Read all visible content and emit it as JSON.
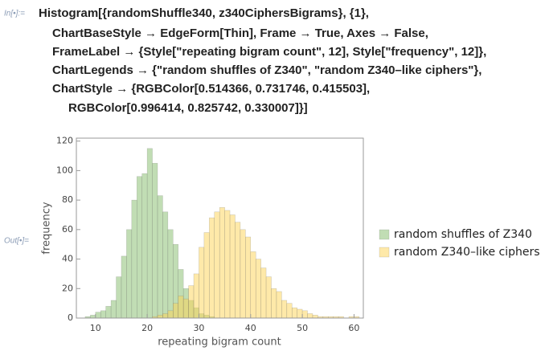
{
  "input_label": "In[•]:=",
  "output_label": "Out[•]=",
  "code_lines": [
    "Histogram[{randomShuffle340, z340CiphersBigrams}, {1},",
    "ChartBaseStyle → EdgeForm[Thin], Frame → True, Axes → False,",
    "FrameLabel → {Style[\"repeating bigram count\", 12], Style[\"frequency\", 12]},",
    "ChartLegends → {\"random shuffles of Z340\", \"random Z340–like ciphers\"},",
    "ChartStyle → {RGBColor[0.514366, 0.731746, 0.415503],",
    "RGBColor[0.996414, 0.825742, 0.330007]}]"
  ],
  "chart_data": {
    "type": "histogram",
    "x_label": "repeating bigram count",
    "y_label": "frequency",
    "xlim": [
      6.3,
      61.8
    ],
    "ylim": [
      0,
      122
    ],
    "xticks": [
      10,
      20,
      30,
      40,
      50,
      60
    ],
    "yticks": [
      0,
      20,
      40,
      60,
      80,
      100,
      120
    ],
    "opacity": 0.5,
    "legend": "right",
    "series": [
      {
        "name": "random shuffles of Z340",
        "color": "#83bb6a",
        "bins": [
          8,
          9,
          10,
          11,
          12,
          13,
          14,
          15,
          16,
          17,
          18,
          19,
          20,
          21,
          22,
          23,
          24,
          25,
          26,
          27,
          28,
          29,
          30,
          31,
          32,
          33
        ],
        "values": [
          1,
          2,
          4,
          5,
          8,
          12,
          28,
          42,
          60,
          80,
          96,
          98,
          115,
          105,
          83,
          72,
          60,
          50,
          33,
          20,
          12,
          7,
          3,
          2,
          1
        ]
      },
      {
        "name": "random Z340–like ciphers",
        "color": "#fed354",
        "bins": [
          21,
          22,
          23,
          24,
          25,
          26,
          27,
          28,
          29,
          30,
          31,
          32,
          33,
          34,
          35,
          36,
          37,
          38,
          39,
          40,
          41,
          42,
          43,
          44,
          45,
          46,
          47,
          48,
          49,
          50,
          51,
          52,
          53,
          54,
          55,
          56,
          57,
          58,
          59,
          60,
          61
        ],
        "values": [
          1,
          2,
          3,
          5,
          10,
          15,
          13,
          22,
          30,
          48,
          58,
          68,
          72,
          75,
          73,
          70,
          65,
          60,
          55,
          45,
          40,
          34,
          28,
          20,
          18,
          12,
          10,
          7,
          6,
          5,
          3,
          2,
          1,
          1,
          1,
          1,
          1,
          0,
          1,
          1
        ]
      }
    ]
  }
}
